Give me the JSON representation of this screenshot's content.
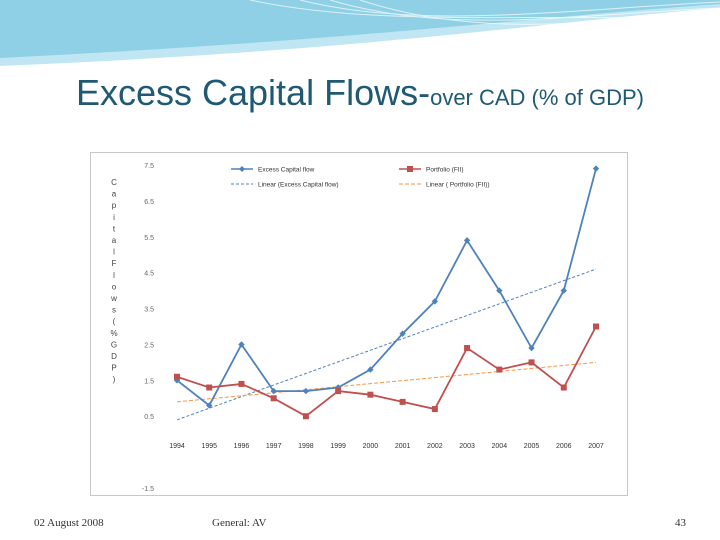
{
  "slide": {
    "title_main": "Excess Capital Flows-",
    "title_sub": "over CAD (% of GDP)",
    "footer_date": "02 August 2008",
    "footer_center": "General: AV",
    "page_number": "43"
  },
  "colors": {
    "title": "#1f5a72",
    "banner": "#8fd0e6",
    "series_flow": "#4f81bd",
    "series_portfolio": "#c0504d",
    "trend_portfolio": "#f79646"
  },
  "chart_data": {
    "type": "line",
    "title": "",
    "ylabel": "Capital Flows (%GDP)",
    "xlabel": "",
    "categories": [
      "1994",
      "1995",
      "1996",
      "1997",
      "1998",
      "1999",
      "2000",
      "2001",
      "2002",
      "2003",
      "2004",
      "2005",
      "2006",
      "2007"
    ],
    "ylim": [
      -1.5,
      7.5
    ],
    "yticks": [
      -1.5,
      0.5,
      1.5,
      2.5,
      3.5,
      4.5,
      5.5,
      6.5,
      7.5
    ],
    "ytick_labels": [
      "-1.5",
      "0.5",
      "1.5",
      "2.5",
      "3.5",
      "4.5",
      "5.5",
      "6.5",
      "7.5"
    ],
    "legend_position": "top",
    "series": [
      {
        "name": "Excess Capital flow",
        "values": [
          1.5,
          0.8,
          2.5,
          1.2,
          1.2,
          1.3,
          1.8,
          2.8,
          3.7,
          5.4,
          4.0,
          2.4,
          4.0,
          7.4
        ]
      },
      {
        "name": "Portfolio (FII)",
        "values": [
          1.6,
          1.3,
          1.4,
          1.0,
          0.5,
          1.2,
          1.1,
          0.9,
          0.7,
          2.4,
          1.8,
          2.0,
          1.3,
          3.0
        ]
      }
    ],
    "trendlines": [
      {
        "name": "Linear (Excess Capital flow)",
        "start": 0.4,
        "end": 4.6
      },
      {
        "name": "Linear ( Portfolio (FII))",
        "start": 0.9,
        "end": 2.0
      }
    ]
  }
}
